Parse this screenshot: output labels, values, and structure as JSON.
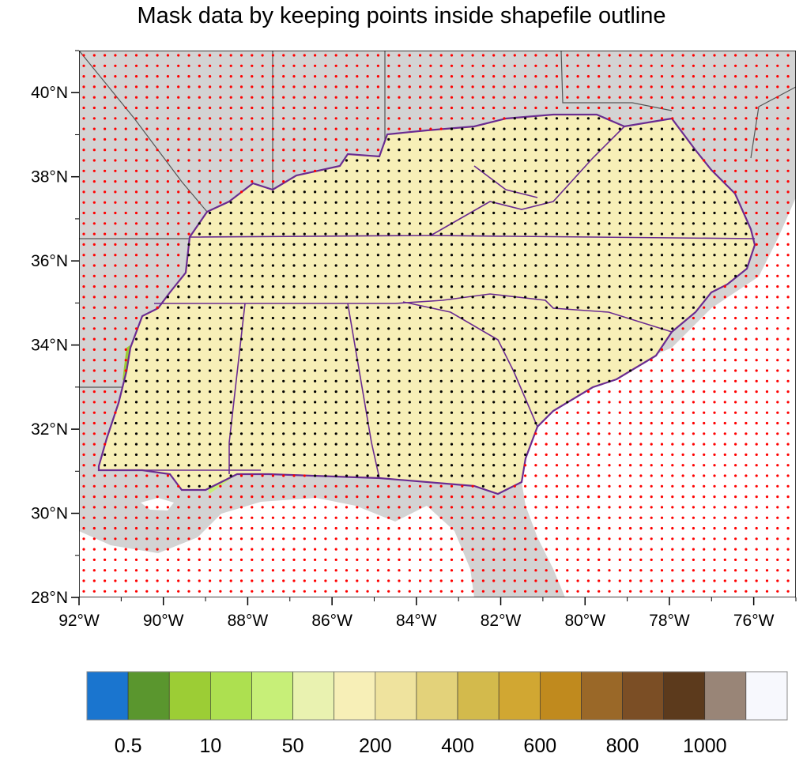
{
  "title": "Mask data by keeping points inside shapefile outline",
  "map": {
    "lon_range": [
      -92,
      -75
    ],
    "lat_range": [
      28,
      41
    ],
    "lon_labels": [
      "92°W",
      "90°W",
      "88°W",
      "86°W",
      "84°W",
      "82°W",
      "80°W",
      "78°W",
      "76°W"
    ],
    "lat_labels": [
      "28°N",
      "30°N",
      "32°N",
      "34°N",
      "36°N",
      "38°N",
      "40°N"
    ],
    "land_color": "#d3d3d3",
    "outline_color": "#6a2c91",
    "inside_dot_color": "#000000",
    "outside_dot_color": "#ff0000"
  },
  "colorbar": {
    "colors": [
      "#1a75cf",
      "#5a962e",
      "#9ccd35",
      "#ade050",
      "#c7ef78",
      "#e9f2b0",
      "#f7efb7",
      "#efe39e",
      "#e3d27a",
      "#d3ba4c",
      "#d1a732",
      "#c08a1e",
      "#9a6828",
      "#7b4e25",
      "#5c3a1c",
      "#998577",
      "#f7f8fd"
    ],
    "labels": [
      "0.5",
      "10",
      "50",
      "200",
      "400",
      "600",
      "800",
      "1000"
    ]
  }
}
